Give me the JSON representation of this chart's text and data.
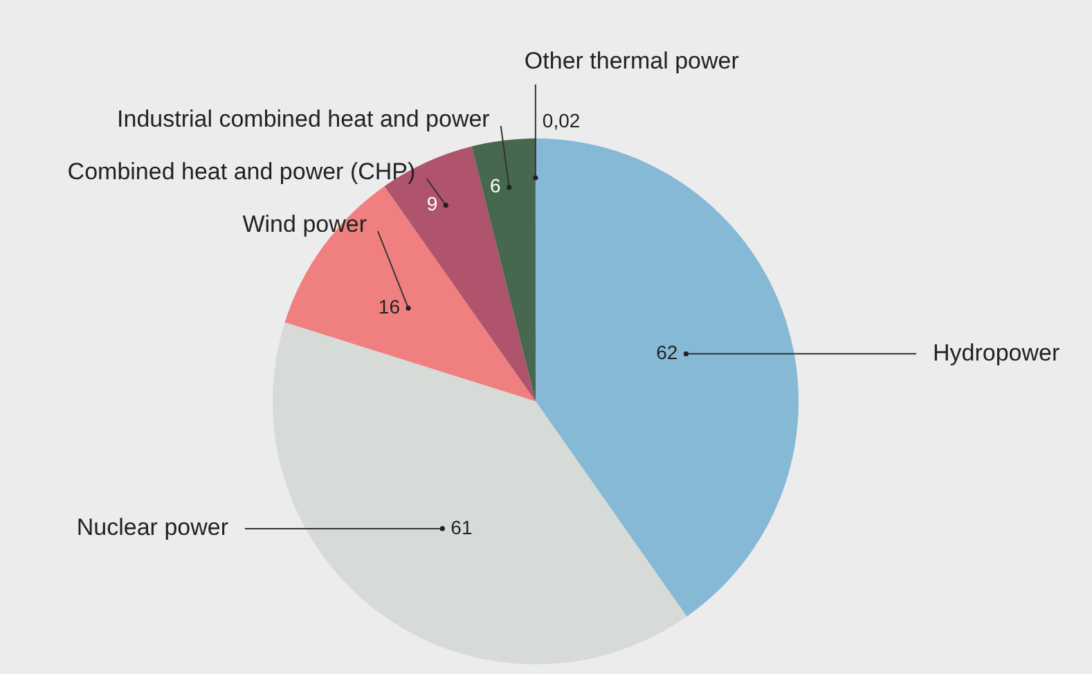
{
  "chart_data": {
    "type": "pie",
    "categories": [
      "Hydropower",
      "Nuclear power",
      "Wind power",
      "Combined heat and power (CHP)",
      "Industrial combined heat and power",
      "Other thermal power"
    ],
    "values": [
      62,
      61,
      16,
      9,
      6,
      0.02
    ],
    "value_labels": [
      "62",
      "61",
      "16",
      "9",
      "6",
      "0,02"
    ],
    "colors": [
      "#86b9d6",
      "#d6dbd8",
      "#f08080",
      "#b0536c",
      "#46684f",
      "#2f4a3a"
    ],
    "legend": false
  }
}
